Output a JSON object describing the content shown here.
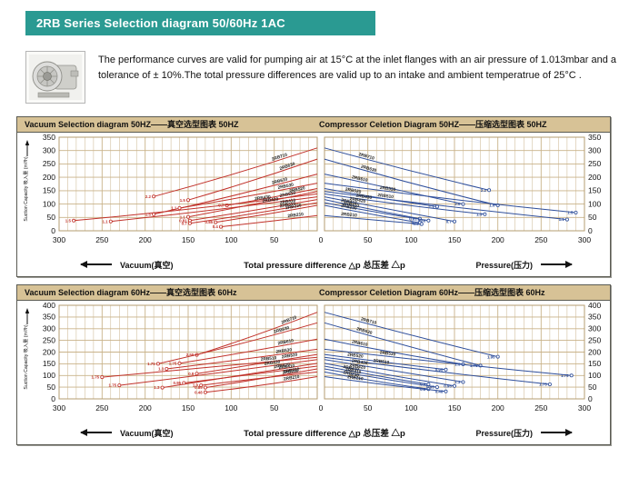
{
  "banner": {
    "title": "2RB Series Selection diagram 50/60Hz 1AC"
  },
  "intro": {
    "text": "The performance curves are valid for pumping air at 15°C at the inlet flanges with an air pressure of 1.013mbar and a tolerance of ± 10%.The total pressure differences are valid up to an intake and ambient temperatrue of 25°C ."
  },
  "colors": {
    "accent_teal": "#2a9a92",
    "panel_header_bg": "#d7c296",
    "grid": "#c9b289",
    "plot_border": "#b49c70",
    "vacuum_curve": "#c1312a",
    "compressor_curve": "#2e4e9b"
  },
  "chart_data": [
    {
      "type": "line",
      "frequency": "50Hz",
      "header_left": "Vacuum Selection diagram 50HZ——真空选型图表 50HZ",
      "header_right": "Compressor Celetion Diagram 50HZ——压缩选型图表 50HZ",
      "ylabel": "Suction Capacity 吸入量 (m³/h)",
      "xlabel_left": "Vacuum(真空)",
      "xlabel_center": "Total pressure difference △p 总压差 △p",
      "xlabel_right": "Pressure(压力)",
      "ylim": [
        0,
        350
      ],
      "ytick_step": 50,
      "xlim_each_side": [
        0,
        300
      ],
      "xtick_step": 50,
      "grid_minor_step": 10,
      "vacuum_series": [
        {
          "name": "2RB710",
          "power_kw": "2.2",
          "points": [
            [
              190,
              128
            ],
            [
              95,
              210
            ],
            [
              0,
              310
            ]
          ]
        },
        {
          "name": "2RB630",
          "power_kw": "1.5",
          "points": [
            [
              150,
              115
            ],
            [
              75,
              185
            ],
            [
              0,
              268
            ]
          ]
        },
        {
          "name": "2RB610",
          "power_kw": "1.5",
          "points": [
            [
              190,
              62
            ],
            [
              95,
              130
            ],
            [
              0,
              212
            ]
          ]
        },
        {
          "name": "2RB530",
          "power_kw": "1.1",
          "points": [
            [
              160,
              85
            ],
            [
              80,
              128
            ],
            [
              0,
              178
            ]
          ]
        },
        {
          "name": "2RB520",
          "power_kw": "0.7",
          "points": [
            [
              105,
              95
            ],
            [
              50,
              125
            ],
            [
              0,
              158
            ]
          ]
        },
        {
          "name": "2RB510",
          "power_kw": "1.1",
          "points": [
            [
              150,
              52
            ],
            [
              75,
              98
            ],
            [
              0,
              147
            ]
          ]
        },
        {
          "name": "2RB430",
          "power_kw": "1.5",
          "points": [
            [
              283,
              38
            ],
            [
              140,
              80
            ],
            [
              0,
              138
            ]
          ]
        },
        {
          "name": "2RB420",
          "power_kw": "1.1",
          "points": [
            [
              240,
              35
            ],
            [
              120,
              75
            ],
            [
              0,
              127
            ]
          ]
        },
        {
          "name": "2RB410",
          "power_kw": "0.81",
          "points": [
            [
              148,
              38
            ],
            [
              75,
              75
            ],
            [
              0,
              117
            ]
          ]
        },
        {
          "name": "2RB310",
          "power_kw": "0.7",
          "points": [
            [
              148,
              28
            ],
            [
              75,
              62
            ],
            [
              0,
              105
            ]
          ]
        },
        {
          "name": "2RB230",
          "power_kw": "0.85",
          "points": [
            [
              118,
              32
            ],
            [
              60,
              60
            ],
            [
              0,
              95
            ]
          ]
        },
        {
          "name": "2RB210",
          "power_kw": "0.4",
          "points": [
            [
              112,
              15
            ],
            [
              55,
              35
            ],
            [
              0,
              57
            ]
          ]
        }
      ],
      "compressor_series": [
        {
          "name": "2RB710",
          "power_kw": "2.2",
          "points": [
            [
              0,
              310
            ],
            [
              95,
              225
            ],
            [
              190,
              152
            ]
          ]
        },
        {
          "name": "2RB630",
          "power_kw": "1.6",
          "points": [
            [
              0,
              268
            ],
            [
              100,
              175
            ],
            [
              200,
              95
            ]
          ]
        },
        {
          "name": "2RB610",
          "power_kw": "2.0",
          "points": [
            [
              0,
              212
            ],
            [
              80,
              155
            ],
            [
              160,
              100
            ]
          ]
        },
        {
          "name": "2RB530",
          "power_kw": "1.5",
          "points": [
            [
              0,
              178
            ],
            [
              145,
              115
            ],
            [
              290,
              68
            ]
          ]
        },
        {
          "name": "2RB520",
          "power_kw": "1.1",
          "points": [
            [
              0,
              158
            ],
            [
              65,
              120
            ],
            [
              130,
              90
            ]
          ]
        },
        {
          "name": "2RB510",
          "power_kw": "1.1",
          "points": [
            [
              0,
              147
            ],
            [
              140,
              90
            ],
            [
              280,
              42
            ]
          ]
        },
        {
          "name": "2RB430",
          "power_kw": "1.3",
          "points": [
            [
              0,
              138
            ],
            [
              90,
              95
            ],
            [
              185,
              62
            ]
          ]
        },
        {
          "name": "2RB420",
          "power_kw": "0.7",
          "points": [
            [
              0,
              127
            ],
            [
              75,
              80
            ],
            [
              150,
              35
            ]
          ]
        },
        {
          "name": "2RB410",
          "power_kw": "0.81",
          "points": [
            [
              0,
              117
            ],
            [
              55,
              78
            ],
            [
              110,
              45
            ]
          ]
        },
        {
          "name": "2RB310",
          "power_kw": "0.85",
          "points": [
            [
              0,
              105
            ],
            [
              60,
              68
            ],
            [
              120,
              38
            ]
          ]
        },
        {
          "name": "2RB230",
          "power_kw": "0.7",
          "points": [
            [
              0,
              95
            ],
            [
              55,
              60
            ],
            [
              110,
              30
            ]
          ]
        },
        {
          "name": "2RB210",
          "power_kw": "0.4",
          "points": [
            [
              0,
              57
            ],
            [
              56,
              40
            ],
            [
              112,
              25
            ]
          ]
        }
      ]
    },
    {
      "type": "line",
      "frequency": "60Hz",
      "header_left": "Vacuum Selection diagram 60Hz——真空选型图表 60Hz",
      "header_right": "Compressor Celetion Diagram 60Hz——压缩选型图表 60Hz",
      "ylabel": "Suction Capacity 吸入量 (m³/h)",
      "xlabel_left": "Vacuum(真空)",
      "xlabel_center": "Total pressure difference △p 总压差 △p",
      "xlabel_right": "Pressure(压力)",
      "ylim": [
        0,
        400
      ],
      "ytick_step": 50,
      "xlim_each_side": [
        0,
        300
      ],
      "xtick_step": 50,
      "grid_minor_step": 10,
      "vacuum_series": [
        {
          "name": "2RB710",
          "power_kw": "2.55",
          "points": [
            [
              140,
              188
            ],
            [
              70,
              270
            ],
            [
              0,
              370
            ]
          ]
        },
        {
          "name": "2RB630",
          "power_kw": "1.75",
          "points": [
            [
              185,
              150
            ],
            [
              90,
              230
            ],
            [
              0,
              325
            ]
          ]
        },
        {
          "name": "2RB610",
          "power_kw": "1.75",
          "points": [
            [
              160,
              152
            ],
            [
              80,
              200
            ],
            [
              0,
              255
            ]
          ]
        },
        {
          "name": "2RB530",
          "power_kw": "1.3",
          "points": [
            [
              175,
              128
            ],
            [
              85,
              168
            ],
            [
              0,
              212
            ]
          ]
        },
        {
          "name": "2RB520",
          "power_kw": "0.8",
          "points": [
            [
              140,
              108
            ],
            [
              70,
              148
            ],
            [
              0,
              190
            ]
          ]
        },
        {
          "name": "2RB510",
          "power_kw": "1.75",
          "points": [
            [
              250,
              93
            ],
            [
              125,
              135
            ],
            [
              0,
              178
            ]
          ]
        },
        {
          "name": "2RB430",
          "power_kw": "1.75",
          "points": [
            [
              230,
              58
            ],
            [
              115,
              110
            ],
            [
              0,
              168
            ]
          ]
        },
        {
          "name": "2RB420",
          "power_kw": "1.3",
          "points": [
            [
              180,
              48
            ],
            [
              90,
              100
            ],
            [
              0,
              152
            ]
          ]
        },
        {
          "name": "2RB410",
          "power_kw": "0.95",
          "points": [
            [
              155,
              68
            ],
            [
              78,
              105
            ],
            [
              0,
              140
            ]
          ]
        },
        {
          "name": "2RB310",
          "power_kw": "0.85",
          "points": [
            [
              130,
              48
            ],
            [
              65,
              85
            ],
            [
              0,
              128
            ]
          ]
        },
        {
          "name": "2RB230",
          "power_kw": "1.0",
          "points": [
            [
              135,
              58
            ],
            [
              68,
              88
            ],
            [
              0,
              115
            ]
          ]
        },
        {
          "name": "2RB210",
          "power_kw": "0.48",
          "points": [
            [
              130,
              28
            ],
            [
              65,
              55
            ],
            [
              0,
              95
            ]
          ]
        }
      ],
      "compressor_series": [
        {
          "name": "2RB710",
          "power_kw": "1.95",
          "points": [
            [
              0,
              370
            ],
            [
              100,
              270
            ],
            [
              200,
              180
            ]
          ]
        },
        {
          "name": "2RB630",
          "power_kw": "1.75",
          "points": [
            [
              0,
              325
            ],
            [
              90,
              230
            ],
            [
              180,
              142
            ]
          ]
        },
        {
          "name": "2RB610",
          "power_kw": "1.3",
          "points": [
            [
              0,
              255
            ],
            [
              80,
              195
            ],
            [
              160,
              148
            ]
          ]
        },
        {
          "name": "2RB530",
          "power_kw": "1.75",
          "points": [
            [
              0,
              212
            ],
            [
              145,
              150
            ],
            [
              285,
              100
            ]
          ]
        },
        {
          "name": "2RB520",
          "power_kw": "0.95",
          "points": [
            [
              0,
              190
            ],
            [
              70,
              155
            ],
            [
              140,
              125
            ]
          ]
        },
        {
          "name": "2RB510",
          "power_kw": "1.75",
          "points": [
            [
              0,
              178
            ],
            [
              130,
              115
            ],
            [
              260,
              62
            ]
          ]
        },
        {
          "name": "2RB430",
          "power_kw": "1.3",
          "points": [
            [
              0,
              168
            ],
            [
              80,
              120
            ],
            [
              160,
              72
            ]
          ]
        },
        {
          "name": "2RB420",
          "power_kw": "0.95",
          "points": [
            [
              0,
              152
            ],
            [
              75,
              100
            ],
            [
              150,
              55
            ]
          ]
        },
        {
          "name": "2RB410",
          "power_kw": "0.8",
          "points": [
            [
              0,
              140
            ],
            [
              60,
              98
            ],
            [
              120,
              62
            ]
          ]
        },
        {
          "name": "2RB310",
          "power_kw": "0.85",
          "points": [
            [
              0,
              128
            ],
            [
              65,
              85
            ],
            [
              130,
              50
            ]
          ]
        },
        {
          "name": "2RB230",
          "power_kw": "0.8",
          "points": [
            [
              0,
              115
            ],
            [
              60,
              72
            ],
            [
              120,
              42
            ]
          ]
        },
        {
          "name": "2RB210",
          "power_kw": "0.48",
          "points": [
            [
              0,
              95
            ],
            [
              70,
              58
            ],
            [
              140,
              32
            ]
          ]
        }
      ]
    }
  ]
}
